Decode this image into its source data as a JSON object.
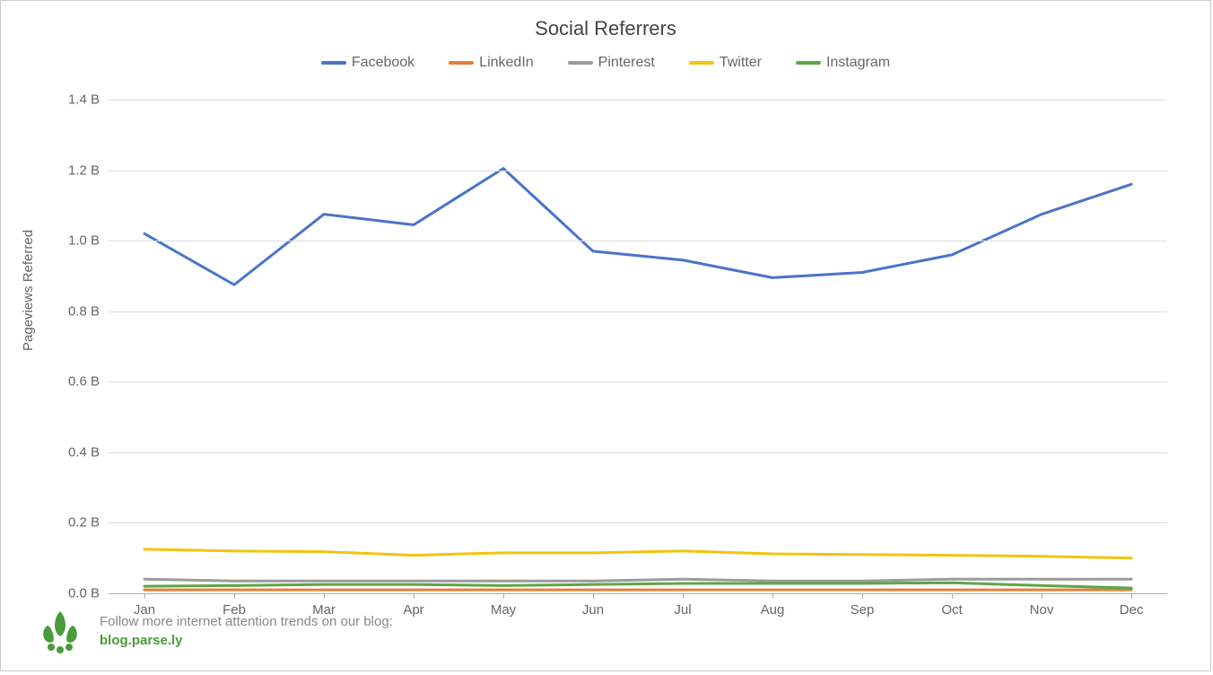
{
  "chart": {
    "type": "line",
    "title": "Social Referrers",
    "title_fontsize": 22,
    "title_color": "#444444",
    "ylabel": "Pageviews Referred",
    "label_fontsize": 15,
    "label_color": "#666666",
    "background_color": "#ffffff",
    "border_color": "#cccccc",
    "grid_color": "#dddddd",
    "axis_color": "#aaaaaa",
    "tick_font_color": "#666666",
    "tick_fontsize": 15,
    "line_width": 3,
    "x_categories": [
      "Jan",
      "Feb",
      "Mar",
      "Apr",
      "May",
      "Jun",
      "Jul",
      "Aug",
      "Sep",
      "Oct",
      "Nov",
      "Dec"
    ],
    "ylim": [
      0.0,
      1.4
    ],
    "ytick_step": 0.2,
    "ytick_labels": [
      "0.0 B",
      "0.2 B",
      "0.4 B",
      "0.6 B",
      "0.8 B",
      "1.0 B",
      "1.2 B",
      "1.4 B"
    ],
    "series": [
      {
        "name": "Facebook",
        "color": "#4a74c9",
        "values": [
          1.02,
          0.875,
          1.075,
          1.045,
          1.205,
          0.97,
          0.945,
          0.895,
          0.91,
          0.96,
          1.075,
          1.16
        ]
      },
      {
        "name": "LinkedIn",
        "color": "#e87e35",
        "values": [
          0.01,
          0.01,
          0.01,
          0.01,
          0.01,
          0.01,
          0.01,
          0.01,
          0.01,
          0.01,
          0.01,
          0.01
        ]
      },
      {
        "name": "Pinterest",
        "color": "#9b9b9b",
        "values": [
          0.04,
          0.035,
          0.035,
          0.035,
          0.035,
          0.035,
          0.04,
          0.035,
          0.035,
          0.04,
          0.04,
          0.04
        ]
      },
      {
        "name": "Twitter",
        "color": "#f2c40f",
        "values": [
          0.125,
          0.12,
          0.118,
          0.108,
          0.115,
          0.115,
          0.12,
          0.112,
          0.11,
          0.108,
          0.105,
          0.1
        ]
      },
      {
        "name": "Instagram",
        "color": "#5aa746",
        "values": [
          0.02,
          0.022,
          0.025,
          0.025,
          0.022,
          0.025,
          0.028,
          0.028,
          0.028,
          0.03,
          0.022,
          0.015
        ]
      }
    ],
    "legend_position": "top-center"
  },
  "footer": {
    "text": "Follow more internet attention trends on our blog:",
    "link_text": "blog.parse.ly",
    "text_color": "#888888",
    "link_color": "#4a9b3a",
    "logo_color": "#4a9b3a"
  }
}
